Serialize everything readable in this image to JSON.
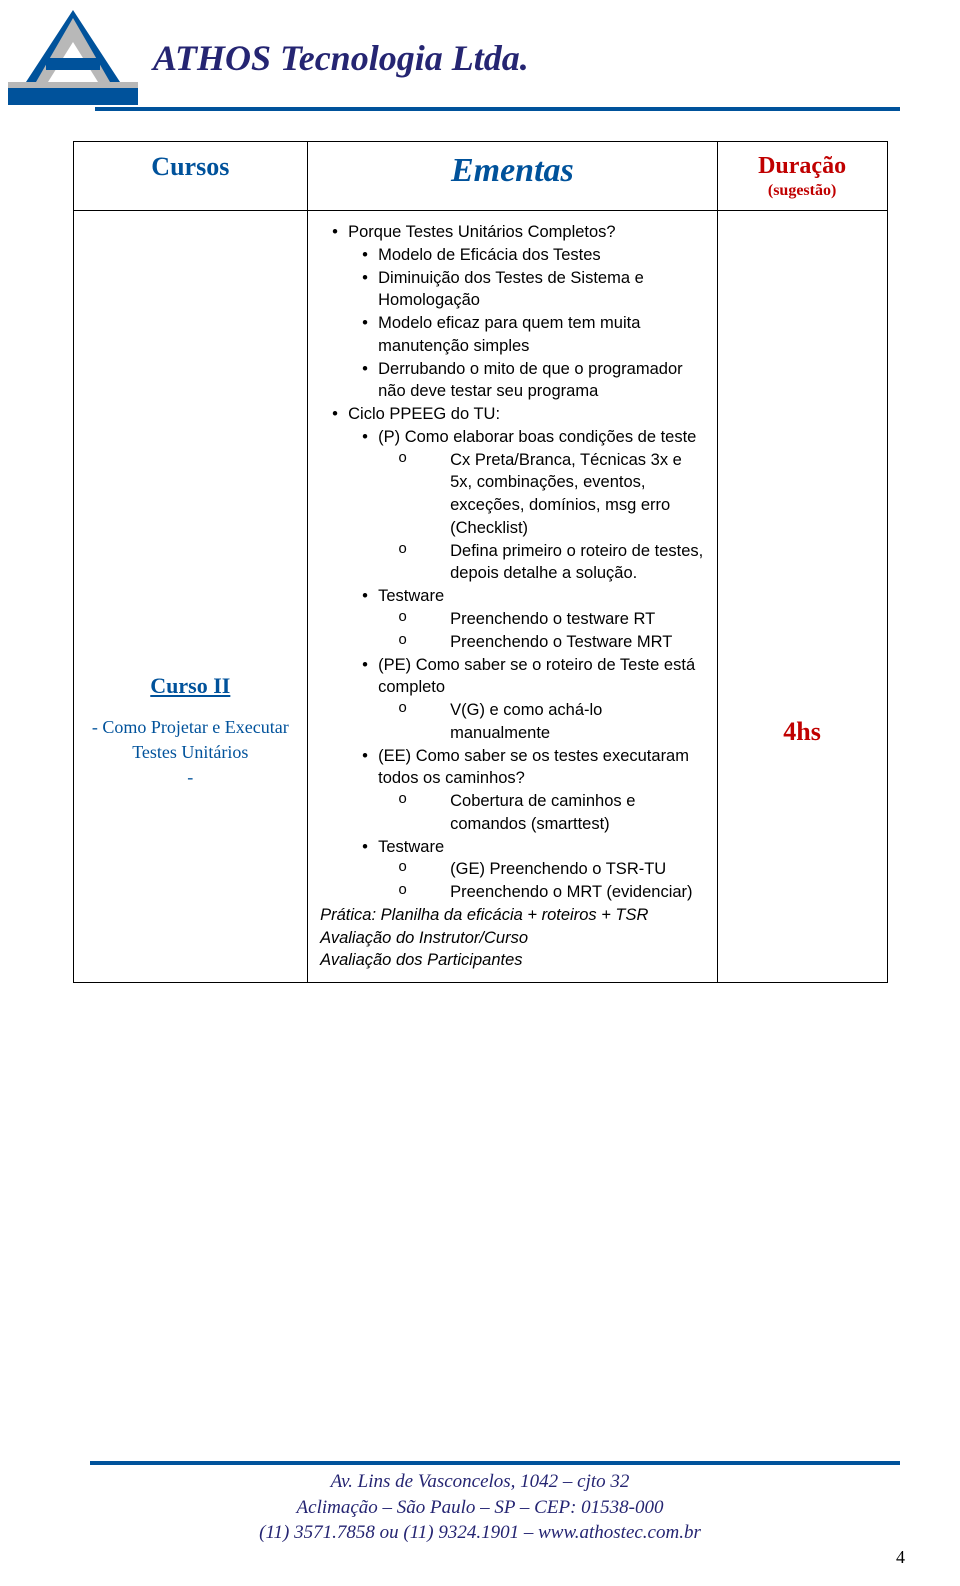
{
  "header": {
    "company_name": "ATHOS Tecnologia Ltda."
  },
  "table": {
    "headers": {
      "cursos": "Cursos",
      "ementas": "Ementas",
      "duracao": "Duração",
      "duracao_sub": "(sugestão)"
    },
    "course": {
      "title": "Curso II",
      "subtitle1": "- Como Projetar e Executar Testes Unitários",
      "subtitle2": "-"
    },
    "duration": "4hs",
    "ementa": [
      {
        "lvl": "l1",
        "t": "Porque Testes Unitários Completos?"
      },
      {
        "lvl": "l2",
        "t": "Modelo de Eficácia dos Testes"
      },
      {
        "lvl": "l2",
        "t": "Diminuição dos Testes de Sistema e Homologação"
      },
      {
        "lvl": "l2",
        "t": "Modelo eficaz para quem tem muita manutenção simples"
      },
      {
        "lvl": "l2",
        "t": "Derrubando o mito de que o programador não deve testar seu programa"
      },
      {
        "lvl": "l1",
        "t": "Ciclo PPEEG do TU:"
      },
      {
        "lvl": "l2",
        "t": "(P) Como elaborar boas condições de teste"
      },
      {
        "lvl": "l3",
        "t": "Cx Preta/Branca, Técnicas 3x e 5x, combinações, eventos, exceções, domínios, msg erro (Checklist)"
      },
      {
        "lvl": "l3",
        "t": "Defina primeiro o roteiro de testes, depois detalhe a solução."
      },
      {
        "lvl": "l2",
        "t": "Testware"
      },
      {
        "lvl": "l3",
        "t": "Preenchendo o testware RT"
      },
      {
        "lvl": "l3",
        "t": "Preenchendo o Testware MRT"
      },
      {
        "lvl": "l2",
        "t": "(PE) Como saber se o roteiro de Teste está completo"
      },
      {
        "lvl": "l3",
        "t": "V(G) e como achá-lo manualmente"
      },
      {
        "lvl": "l2",
        "t": "(EE) Como saber se os testes executaram todos os caminhos?"
      },
      {
        "lvl": "l3",
        "t": "Cobertura de caminhos e comandos (smarttest)"
      },
      {
        "lvl": "l2",
        "t": "Testware"
      },
      {
        "lvl": "l3",
        "t": " (GE) Preenchendo o TSR-TU"
      },
      {
        "lvl": "l3",
        "t": "Preenchendo o MRT (evidenciar)"
      },
      {
        "lvl": "plain",
        "t": "Prática: Planilha da eficácia + roteiros + TSR"
      },
      {
        "lvl": "plain",
        "t": "Avaliação do Instrutor/Curso"
      },
      {
        "lvl": "plain",
        "t": "Avaliação dos Participantes"
      }
    ]
  },
  "footer": {
    "line1": "Av. Lins de Vasconcelos, 1042 – cjto 32",
    "line2": "Aclimação – São Paulo – SP – CEP: 01538-000",
    "line3": "(11) 3571.7858 ou (11) 9324.1901 – www.athostec.com.br",
    "page_num": "4"
  },
  "colors": {
    "blue": "#00529b",
    "darkblue": "#252572",
    "red": "#c00000"
  }
}
